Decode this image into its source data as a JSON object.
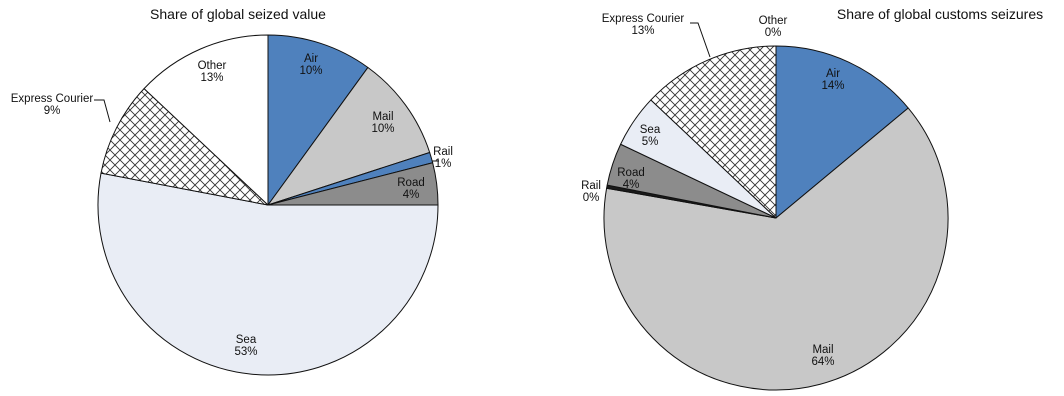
{
  "chart_data": [
    {
      "type": "pie",
      "title": "Share of global seized value",
      "slices": [
        {
          "label": "Air",
          "value": 10,
          "display": "10%",
          "color": "#4f81bd",
          "pattern": "solid"
        },
        {
          "label": "Mail",
          "value": 10,
          "display": "10%",
          "color": "#c8c8c8",
          "pattern": "solid"
        },
        {
          "label": "Rail",
          "value": 1,
          "display": "1%",
          "color": "#4f81bd",
          "pattern": "solid"
        },
        {
          "label": "Road",
          "value": 4,
          "display": "4%",
          "color": "#8c8c8c",
          "pattern": "solid"
        },
        {
          "label": "Sea",
          "value": 53,
          "display": "53%",
          "color": "#e9edf5",
          "pattern": "solid"
        },
        {
          "label": "Express Courier",
          "value": 9,
          "display": "9%",
          "color": "#ffffff",
          "pattern": "crosshatch"
        },
        {
          "label": "Other",
          "value": 13,
          "display": "13%",
          "color": "#ffffff",
          "pattern": "solid"
        }
      ]
    },
    {
      "type": "pie",
      "title": "Share of global customs seizures",
      "slices": [
        {
          "label": "Air",
          "value": 14,
          "display": "14%",
          "color": "#4f81bd",
          "pattern": "solid"
        },
        {
          "label": "Mail",
          "value": 64,
          "display": "64%",
          "color": "#c8c8c8",
          "pattern": "solid"
        },
        {
          "label": "Rail",
          "value": 0.3,
          "display": "0%",
          "color": "#1a1a1a",
          "pattern": "solid"
        },
        {
          "label": "Road",
          "value": 4,
          "display": "4%",
          "color": "#8c8c8c",
          "pattern": "solid"
        },
        {
          "label": "Sea",
          "value": 5,
          "display": "5%",
          "color": "#e9edf5",
          "pattern": "solid"
        },
        {
          "label": "Express Courier",
          "value": 13,
          "display": "13%",
          "color": "#ffffff",
          "pattern": "crosshatch"
        },
        {
          "label": "Other",
          "value": 0,
          "display": "0%",
          "color": "#ffffff",
          "pattern": "solid"
        }
      ]
    }
  ]
}
